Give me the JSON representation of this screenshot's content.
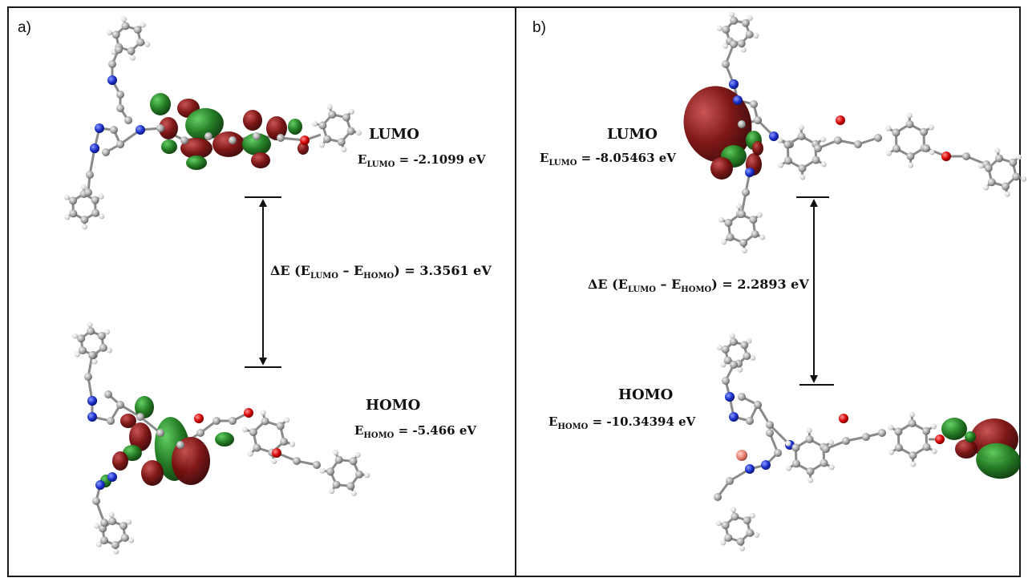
{
  "panels": [
    {
      "letter": "a)",
      "lumo_title": "LUMO",
      "lumo_energy_prefix": "E",
      "lumo_energy_sub": "LUMO",
      "lumo_energy_value": " = -2.1099 eV",
      "homo_title": "HOMO",
      "homo_energy_prefix": "E",
      "homo_energy_sub": "HOMO",
      "homo_energy_value": " = -5.466 eV",
      "gap_prefix": "ΔE (E",
      "gap_sub1": "LUMO",
      "gap_mid": " – E",
      "gap_sub2": "HOMO",
      "gap_value": ") = 3.3561 eV"
    },
    {
      "letter": "b)",
      "lumo_title": "LUMO",
      "lumo_energy_prefix": "E",
      "lumo_energy_sub": "LUMO",
      "lumo_energy_value": " = -8.05463 eV",
      "homo_title": "HOMO",
      "homo_energy_prefix": "E",
      "homo_energy_sub": "HOMO",
      "homo_energy_value": " = -10.34394 eV",
      "gap_prefix": "ΔE (E",
      "gap_sub1": "LUMO",
      "gap_mid": " – E",
      "gap_sub2": "HOMO",
      "gap_value": ") = 2.2893 eV"
    }
  ],
  "colors": {
    "lobe_green": "#1f7a1f",
    "lobe_red": "#7a1010",
    "atom_carbon": "#9a9a9a",
    "atom_nitrogen": "#1b2fc9",
    "atom_oxygen": "#d40000",
    "atom_hydrogen": "#e8e8e8",
    "atom_copper": "#e88070"
  }
}
